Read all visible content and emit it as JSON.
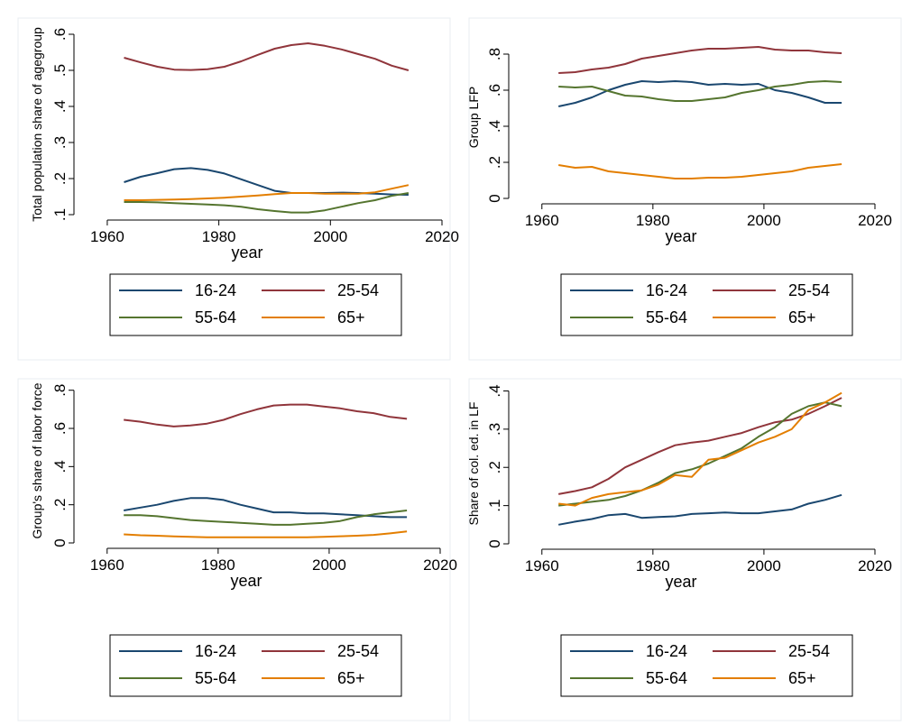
{
  "series_colors": {
    "16-24": "#1a476f",
    "25-54": "#90353b",
    "55-64": "#55752f",
    "65+": "#e37e00"
  },
  "chart_data": [
    {
      "type": "line",
      "title": "",
      "xlabel": "year",
      "ylabel": "Total population share of agegroup",
      "xlim": [
        1955,
        2020
      ],
      "ylim": [
        0.1,
        0.6
      ],
      "xticks": [
        1960,
        1980,
        2000,
        2020
      ],
      "yticks": [
        0.1,
        0.2,
        0.3,
        0.4,
        0.5,
        0.6
      ],
      "ytick_labels": [
        ".1",
        ".2",
        ".3",
        ".4",
        ".5",
        ".6"
      ],
      "legend": "bottom",
      "x": [
        1963,
        1966,
        1969,
        1972,
        1975,
        1978,
        1981,
        1984,
        1987,
        1990,
        1993,
        1996,
        1999,
        2002,
        2005,
        2008,
        2011,
        2014
      ],
      "series": [
        {
          "name": "16-24",
          "values": [
            0.19,
            0.205,
            0.215,
            0.226,
            0.229,
            0.224,
            0.214,
            0.198,
            0.182,
            0.166,
            0.16,
            0.16,
            0.16,
            0.161,
            0.16,
            0.158,
            0.156,
            0.155
          ]
        },
        {
          "name": "25-54",
          "values": [
            0.535,
            0.522,
            0.51,
            0.502,
            0.501,
            0.503,
            0.51,
            0.525,
            0.543,
            0.56,
            0.57,
            0.575,
            0.568,
            0.558,
            0.545,
            0.532,
            0.513,
            0.5
          ]
        },
        {
          "name": "55-64",
          "values": [
            0.135,
            0.135,
            0.134,
            0.132,
            0.13,
            0.128,
            0.126,
            0.122,
            0.115,
            0.11,
            0.106,
            0.106,
            0.112,
            0.122,
            0.132,
            0.14,
            0.152,
            0.16
          ]
        },
        {
          "name": "65+",
          "values": [
            0.14,
            0.14,
            0.141,
            0.142,
            0.143,
            0.145,
            0.147,
            0.15,
            0.153,
            0.157,
            0.16,
            0.16,
            0.158,
            0.158,
            0.158,
            0.162,
            0.172,
            0.182
          ]
        }
      ]
    },
    {
      "type": "line",
      "title": "",
      "xlabel": "year",
      "ylabel": "Group LFP",
      "xlim": [
        1955,
        2020
      ],
      "ylim": [
        0,
        0.9
      ],
      "xticks": [
        1960,
        1980,
        2000,
        2020
      ],
      "yticks": [
        0,
        0.2,
        0.4,
        0.6,
        0.8
      ],
      "ytick_labels": [
        "0",
        ".2",
        ".4",
        ".6",
        ".8"
      ],
      "legend": "bottom",
      "x": [
        1963,
        1966,
        1969,
        1972,
        1975,
        1978,
        1981,
        1984,
        1987,
        1990,
        1993,
        1996,
        1999,
        2002,
        2005,
        2008,
        2011,
        2014
      ],
      "series": [
        {
          "name": "16-24",
          "values": [
            0.51,
            0.53,
            0.56,
            0.6,
            0.63,
            0.65,
            0.645,
            0.65,
            0.645,
            0.63,
            0.635,
            0.63,
            0.635,
            0.6,
            0.585,
            0.56,
            0.53,
            0.53
          ]
        },
        {
          "name": "25-54",
          "values": [
            0.695,
            0.7,
            0.715,
            0.725,
            0.745,
            0.775,
            0.79,
            0.805,
            0.82,
            0.83,
            0.83,
            0.835,
            0.84,
            0.825,
            0.82,
            0.82,
            0.81,
            0.805
          ]
        },
        {
          "name": "55-64",
          "values": [
            0.62,
            0.615,
            0.62,
            0.595,
            0.57,
            0.565,
            0.55,
            0.54,
            0.54,
            0.55,
            0.56,
            0.585,
            0.6,
            0.62,
            0.63,
            0.645,
            0.65,
            0.645
          ]
        },
        {
          "name": "65+",
          "values": [
            0.185,
            0.17,
            0.175,
            0.15,
            0.14,
            0.13,
            0.12,
            0.11,
            0.11,
            0.115,
            0.115,
            0.12,
            0.13,
            0.14,
            0.15,
            0.17,
            0.18,
            0.19
          ]
        }
      ]
    },
    {
      "type": "line",
      "title": "",
      "xlabel": "year",
      "ylabel": "Group's share of labor force",
      "xlim": [
        1955,
        2020
      ],
      "ylim": [
        0,
        0.86
      ],
      "xticks": [
        1960,
        1980,
        2000,
        2020
      ],
      "yticks": [
        0,
        0.2,
        0.4,
        0.6,
        0.8
      ],
      "ytick_labels": [
        "0",
        ".2",
        ".4",
        ".6",
        ".8"
      ],
      "legend": "bottom",
      "x": [
        1963,
        1966,
        1969,
        1972,
        1975,
        1978,
        1981,
        1984,
        1987,
        1990,
        1993,
        1996,
        1999,
        2002,
        2005,
        2008,
        2011,
        2014
      ],
      "series": [
        {
          "name": "16-24",
          "values": [
            0.17,
            0.185,
            0.2,
            0.22,
            0.235,
            0.235,
            0.225,
            0.2,
            0.18,
            0.16,
            0.16,
            0.155,
            0.155,
            0.15,
            0.145,
            0.14,
            0.135,
            0.135
          ]
        },
        {
          "name": "25-54",
          "values": [
            0.645,
            0.635,
            0.62,
            0.61,
            0.615,
            0.625,
            0.645,
            0.675,
            0.7,
            0.72,
            0.725,
            0.725,
            0.715,
            0.705,
            0.69,
            0.68,
            0.66,
            0.65
          ]
        },
        {
          "name": "55-64",
          "values": [
            0.145,
            0.145,
            0.14,
            0.13,
            0.12,
            0.115,
            0.11,
            0.105,
            0.1,
            0.095,
            0.095,
            0.1,
            0.105,
            0.115,
            0.135,
            0.15,
            0.16,
            0.17
          ]
        },
        {
          "name": "65+",
          "values": [
            0.045,
            0.04,
            0.038,
            0.034,
            0.032,
            0.03,
            0.03,
            0.03,
            0.03,
            0.03,
            0.03,
            0.03,
            0.032,
            0.035,
            0.038,
            0.042,
            0.05,
            0.06
          ]
        }
      ]
    },
    {
      "type": "line",
      "title": "",
      "xlabel": "year",
      "ylabel": "Share of col. ed. in LF",
      "xlim": [
        1955,
        2020
      ],
      "ylim": [
        0,
        0.42
      ],
      "xticks": [
        1960,
        1980,
        2000,
        2020
      ],
      "yticks": [
        0,
        0.1,
        0.2,
        0.3,
        0.4
      ],
      "ytick_labels": [
        "0",
        ".1",
        ".2",
        ".3",
        ".4"
      ],
      "legend": "bottom",
      "x": [
        1963,
        1966,
        1969,
        1972,
        1975,
        1978,
        1981,
        1984,
        1987,
        1990,
        1993,
        1996,
        1999,
        2002,
        2005,
        2008,
        2011,
        2014
      ],
      "series": [
        {
          "name": "16-24",
          "values": [
            0.05,
            0.058,
            0.065,
            0.075,
            0.078,
            0.068,
            0.07,
            0.072,
            0.078,
            0.08,
            0.082,
            0.08,
            0.08,
            0.085,
            0.09,
            0.105,
            0.115,
            0.128
          ]
        },
        {
          "name": "25-54",
          "values": [
            0.13,
            0.138,
            0.148,
            0.17,
            0.2,
            0.22,
            0.24,
            0.258,
            0.265,
            0.27,
            0.28,
            0.29,
            0.305,
            0.318,
            0.325,
            0.34,
            0.36,
            0.382
          ]
        },
        {
          "name": "55-64",
          "values": [
            0.1,
            0.105,
            0.11,
            0.115,
            0.125,
            0.14,
            0.16,
            0.185,
            0.195,
            0.21,
            0.23,
            0.25,
            0.28,
            0.305,
            0.34,
            0.36,
            0.37,
            0.36
          ]
        },
        {
          "name": "65+",
          "values": [
            0.105,
            0.1,
            0.12,
            0.13,
            0.135,
            0.14,
            0.155,
            0.18,
            0.175,
            0.22,
            0.225,
            0.245,
            0.265,
            0.28,
            0.3,
            0.35,
            0.37,
            0.395
          ]
        }
      ]
    }
  ]
}
